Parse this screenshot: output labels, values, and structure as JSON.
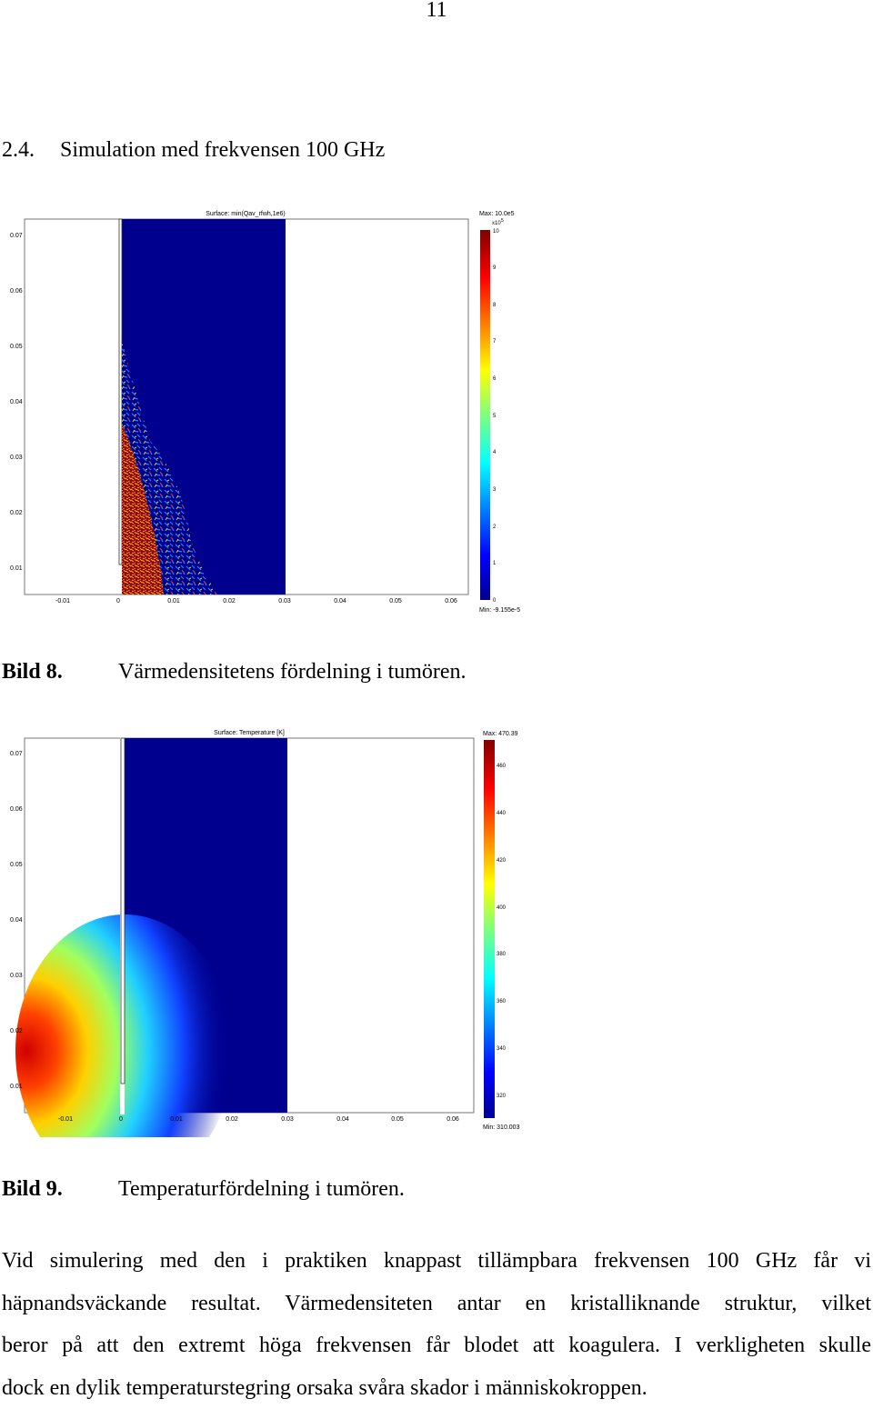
{
  "page_number": "11",
  "section": {
    "number": "2.4.",
    "title": "Simulation med frekvensen 100 GHz"
  },
  "figures": [
    {
      "id": "bild8",
      "caption_label": "Bild 8.",
      "caption_text": "Värmedensitetens fördelning i tumören.",
      "plot_title": "Surface: min(Qav_rfwh,1e6)",
      "max_label": "Max: 10.0e5",
      "min_label": "Min: -9.155e-5",
      "colorbar_exponent_base": "x10",
      "colorbar_exponent_power": "5",
      "x_ticks": [
        "-0.01",
        "0",
        "0.01",
        "0.02",
        "0.03",
        "0.04",
        "0.05",
        "0.06"
      ],
      "y_ticks": [
        "0.07",
        "0.06",
        "0.05",
        "0.04",
        "0.03",
        "0.02",
        "0.01"
      ],
      "colorbar_ticks": [
        "10",
        "9",
        "8",
        "7",
        "6",
        "5",
        "4",
        "3",
        "2",
        "1",
        "0"
      ]
    },
    {
      "id": "bild9",
      "caption_label": "Bild 9.",
      "caption_text": "Temperaturfördelning i tumören.",
      "plot_title": "Surface: Temperature [K]",
      "max_label": "Max: 470.39",
      "min_label": "Min: 310.003",
      "x_ticks": [
        "-0.01",
        "0",
        "0.01",
        "0.02",
        "0.03",
        "0.04",
        "0.05",
        "0.06"
      ],
      "y_ticks": [
        "0.07",
        "0.06",
        "0.05",
        "0.04",
        "0.03",
        "0.02",
        "0.01"
      ],
      "colorbar_ticks": [
        "460",
        "440",
        "420",
        "400",
        "380",
        "360",
        "340",
        "320"
      ]
    }
  ],
  "paragraph_lines": [
    "Vid simulering med den i praktiken knappast tillämpbara frekvensen 100 GHz får vi",
    "häpnandsväckande resultat. Värmedensiteten antar en kristalliknande struktur, vilket",
    "beror på att den extremt höga frekvensen får blodet att koagulera. I verkligheten skulle",
    "dock en dylik temperaturstegring orsaka svåra skador i människokroppen."
  ]
}
